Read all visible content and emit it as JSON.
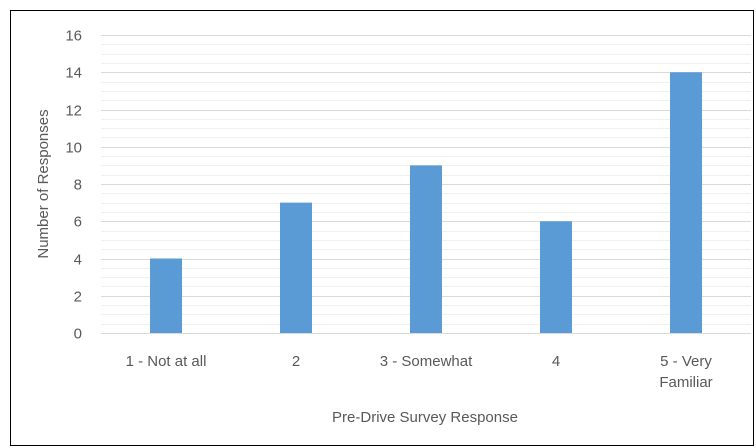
{
  "chart_data": {
    "type": "bar",
    "title": "",
    "xlabel": "Pre-Drive Survey Response",
    "ylabel": "Number of Responses",
    "categories": [
      [
        "1 - Not at all"
      ],
      [
        "2"
      ],
      [
        "3 - Somewhat"
      ],
      [
        "4"
      ],
      [
        "5 - Very",
        "Familiar"
      ]
    ],
    "values": [
      4,
      7,
      9,
      6,
      14
    ],
    "ylim": [
      0,
      16
    ],
    "ytick_step": 2,
    "y_ticks": [
      "0",
      "2",
      "4",
      "6",
      "8",
      "10",
      "12",
      "14",
      "16"
    ],
    "grid": true,
    "legend": "none",
    "colors": {
      "bar": "#5b9bd5",
      "major_grid": "#d9d9d9",
      "minor_grid": "#f0f0f0",
      "axis_line": "#d9d9d9",
      "text": "#595959",
      "border": "#000000"
    }
  }
}
